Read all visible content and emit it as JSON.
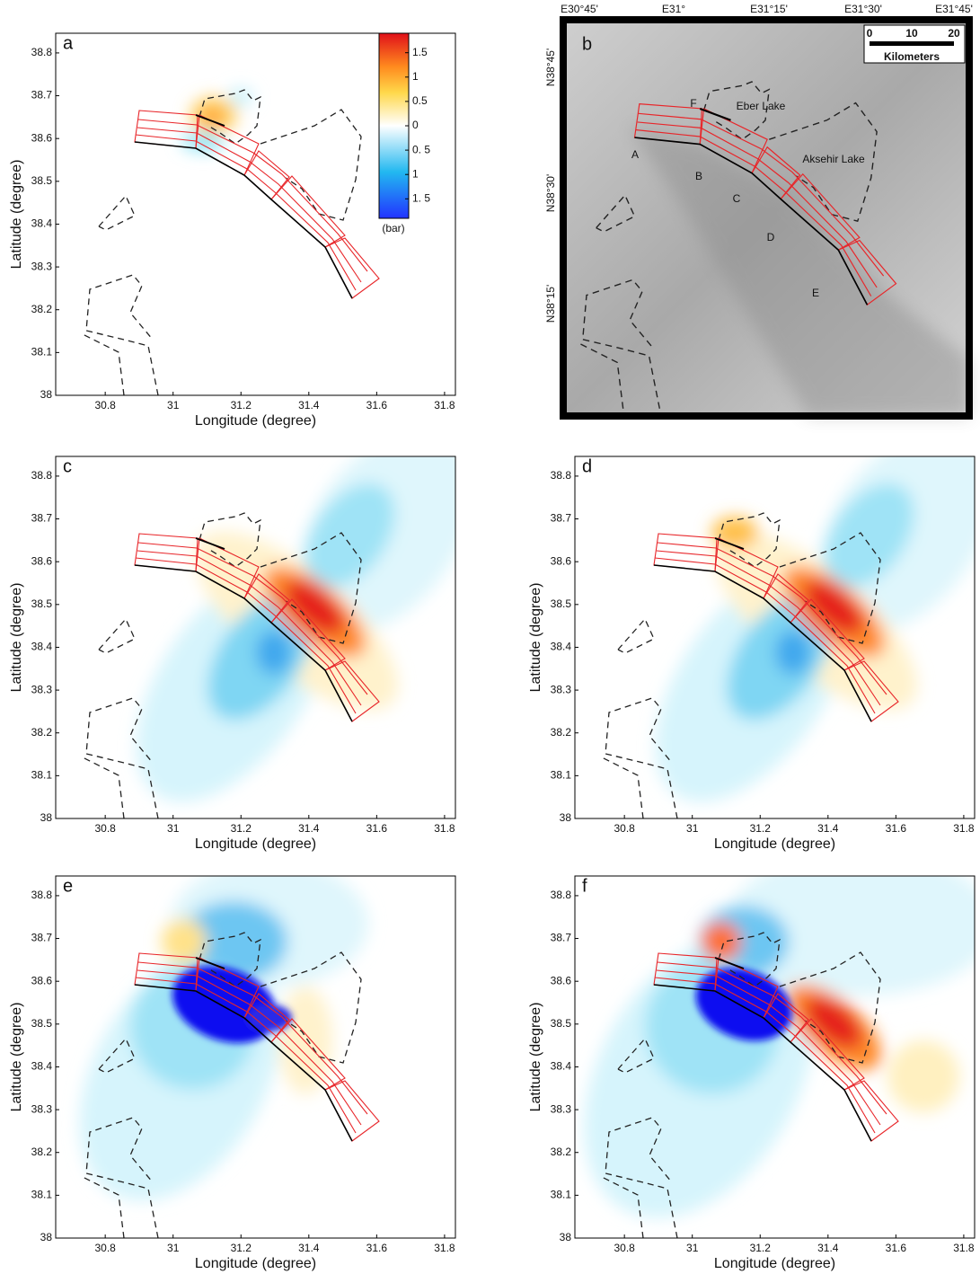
{
  "chart_data": [
    {
      "type": "contour",
      "label": "a",
      "xlabel": "Longitude (degree)",
      "ylabel": "Latitude (degree)",
      "xlim": [
        30.654,
        31.832
      ],
      "ylim": [
        38,
        38.846
      ],
      "xticks": [
        30.8,
        31,
        31.2,
        31.4,
        31.6,
        31.8
      ],
      "yticks": [
        38,
        38.1,
        38.2,
        38.3,
        38.4,
        38.5,
        38.6,
        38.7,
        38.8
      ],
      "colorbar": {
        "label": "(bar)",
        "clim": [
          -1.9,
          1.9
        ],
        "ticks": [
          1.5,
          1,
          0.5,
          0,
          {
            "value": -0.5,
            "label": "0. 5"
          },
          {
            "value": -1,
            "label": "1"
          },
          {
            "value": -1.5,
            "label": "1. 5"
          }
        ]
      }
    },
    {
      "type": "map",
      "label": "b",
      "top_labels": [
        "E30°45'",
        "E31°",
        "E31°15'",
        "E31°30'",
        "E31°45'"
      ],
      "left_labels": [
        "N38°45'",
        "N38°30'",
        "N38°15'"
      ],
      "scale_labels": [
        "0",
        "10",
        "20"
      ],
      "scale_unit": "Kilometers",
      "place_labels": [
        "Eber Lake",
        "Aksehir Lake"
      ],
      "segment_labels": [
        "A",
        "B",
        "C",
        "D",
        "E",
        "F"
      ]
    },
    {
      "type": "contour",
      "label": "c",
      "xlabel": "Longitude (degree)",
      "ylabel": "Latitude (degree)",
      "xlim": [
        30.654,
        31.832
      ],
      "ylim": [
        38,
        38.846
      ],
      "xticks": [
        30.8,
        31,
        31.2,
        31.4,
        31.6,
        31.8
      ],
      "yticks": [
        38,
        38.1,
        38.2,
        38.3,
        38.4,
        38.5,
        38.6,
        38.7,
        38.8
      ]
    },
    {
      "type": "contour",
      "label": "d",
      "xlabel": "Longitude (degree)",
      "ylabel": "Latitude (degree)",
      "xlim": [
        30.654,
        31.832
      ],
      "ylim": [
        38,
        38.846
      ],
      "xticks": [
        30.8,
        31,
        31.2,
        31.4,
        31.6,
        31.8
      ],
      "yticks": [
        38,
        38.1,
        38.2,
        38.3,
        38.4,
        38.5,
        38.6,
        38.7,
        38.8
      ]
    },
    {
      "type": "contour",
      "label": "e",
      "xlabel": "Longitude (degree)",
      "ylabel": "Latitude (degree)",
      "xlim": [
        30.654,
        31.832
      ],
      "ylim": [
        38,
        38.846
      ],
      "xticks": [
        30.8,
        31,
        31.2,
        31.4,
        31.6,
        31.8
      ],
      "yticks": [
        38,
        38.1,
        38.2,
        38.3,
        38.4,
        38.5,
        38.6,
        38.7,
        38.8
      ]
    },
    {
      "type": "contour",
      "label": "f",
      "xlabel": "Longitude (degree)",
      "ylabel": "Latitude (degree)",
      "xlim": [
        30.654,
        31.832
      ],
      "ylim": [
        38,
        38.846
      ],
      "xticks": [
        30.8,
        31,
        31.2,
        31.4,
        31.6,
        31.8
      ],
      "yticks": [
        38,
        38.1,
        38.2,
        38.3,
        38.4,
        38.5,
        38.6,
        38.7,
        38.8
      ]
    }
  ]
}
